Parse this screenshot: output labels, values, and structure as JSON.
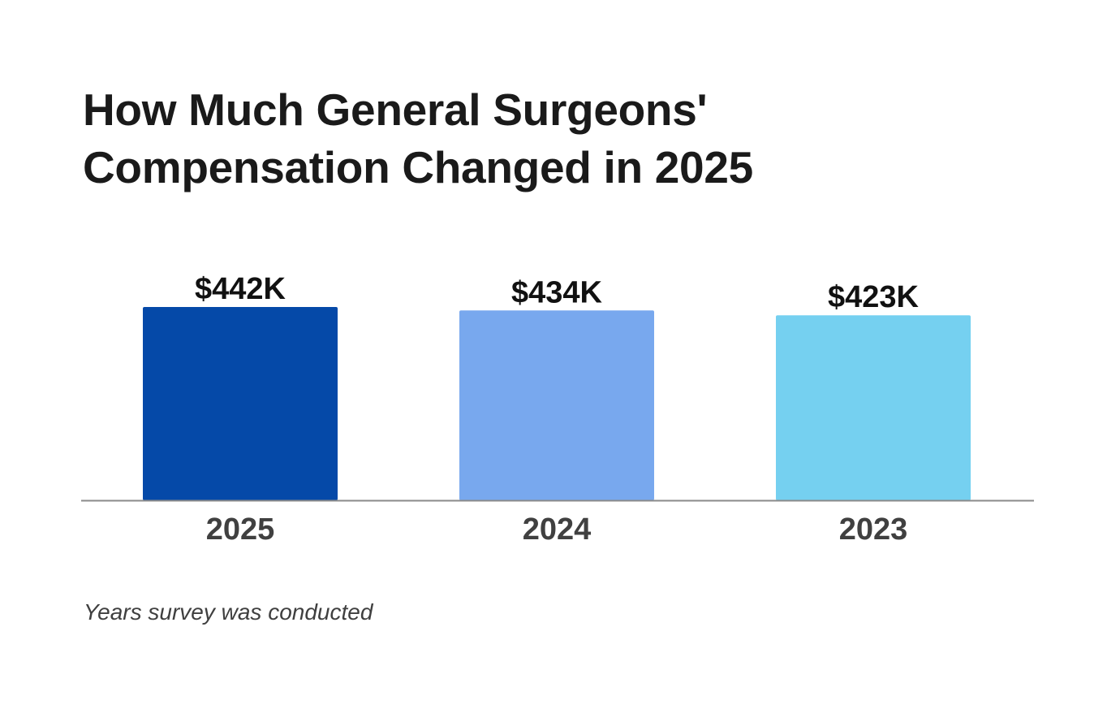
{
  "title_lines": [
    "How Much General Surgeons'",
    "Compensation Changed in 2025"
  ],
  "footnote": "Years survey was conducted",
  "chart_data": {
    "type": "bar",
    "title": "How Much General Surgeons' Compensation Changed in 2025",
    "xlabel": "Years survey was conducted",
    "ylabel": "",
    "categories": [
      "2025",
      "2024",
      "2023"
    ],
    "values": [
      442,
      434,
      423
    ],
    "value_labels": [
      "$442K",
      "$434K",
      "$423K"
    ],
    "ylim": [
      0,
      442
    ],
    "grid": false,
    "legend": "none",
    "colors": [
      "#0549a8",
      "#78a8ee",
      "#75d0f0"
    ],
    "axis_color": "#8a8a8a",
    "tick_label_color": "#404040",
    "value_label_color": "#111111"
  }
}
